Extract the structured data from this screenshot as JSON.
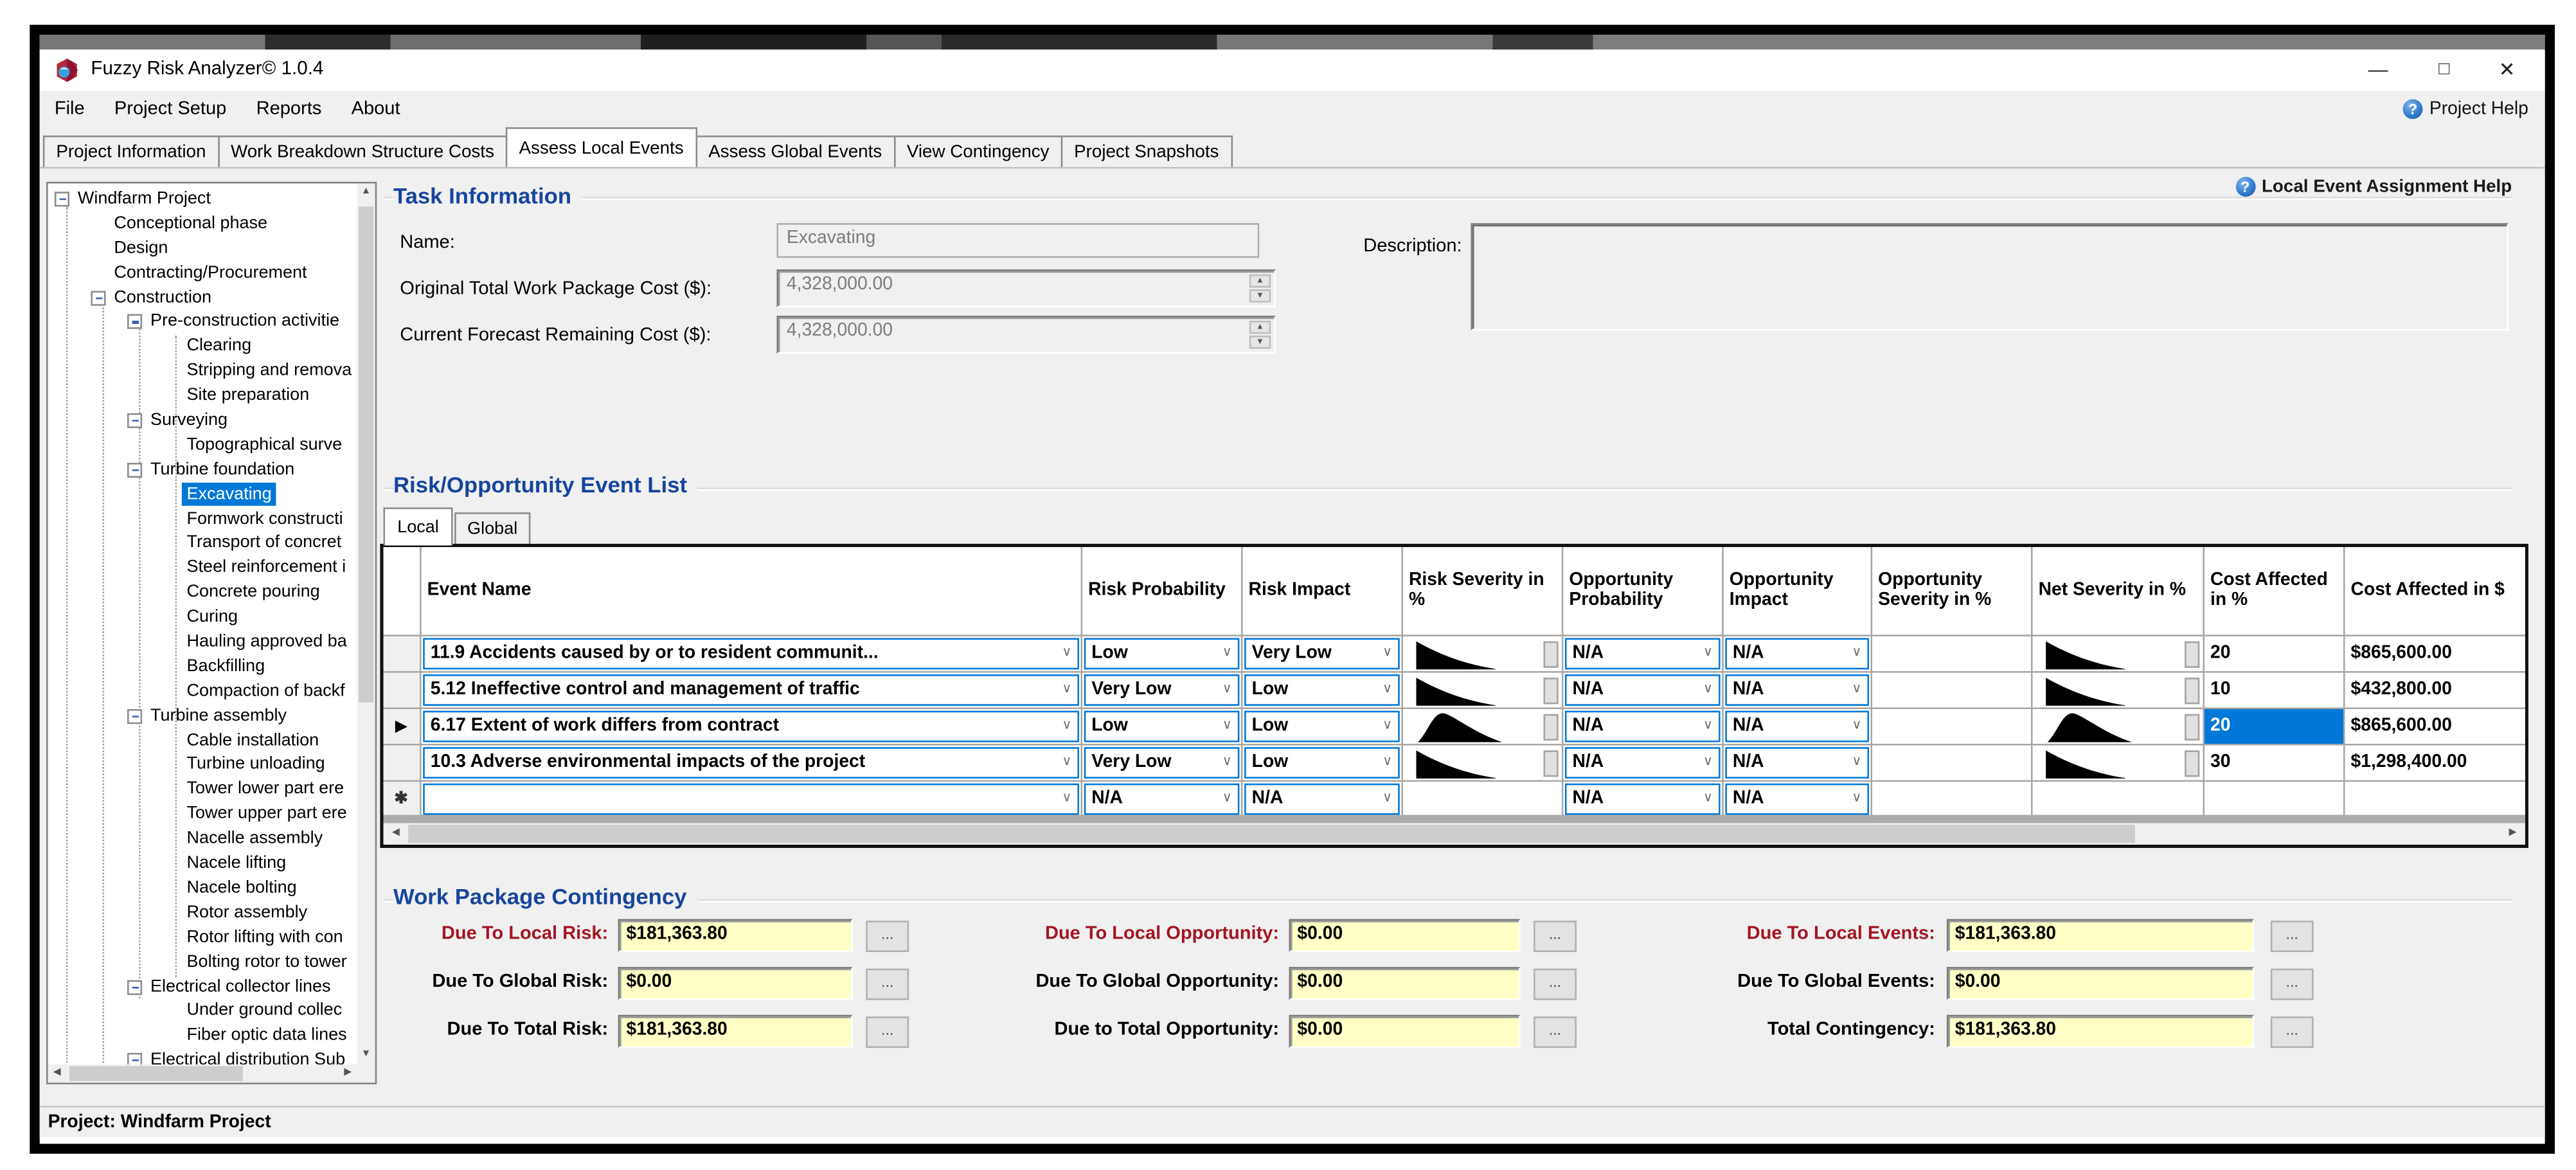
{
  "window": {
    "title": "Fuzzy Risk Analyzer© 1.0.4",
    "controls": {
      "minimize": "—",
      "maximize": "☐",
      "close": "✕"
    }
  },
  "menu": {
    "items": [
      "File",
      "Project Setup",
      "Reports",
      "About"
    ],
    "help_label": "Project Help"
  },
  "main_tabs": {
    "selected_index": 2,
    "items": [
      "Project Information",
      "Work Breakdown Structure Costs",
      "Assess Local Events",
      "Assess Global Events",
      "View Contingency",
      "Project Snapshots"
    ]
  },
  "tree": {
    "items": [
      {
        "label": "Windfarm Project",
        "level": 0,
        "expander": true
      },
      {
        "label": "Conceptional phase",
        "level": 1
      },
      {
        "label": "Design",
        "level": 1
      },
      {
        "label": "Contracting/Procurement",
        "level": 1
      },
      {
        "label": "Construction",
        "level": 1,
        "expander": true
      },
      {
        "label": "Pre-construction activitie",
        "level": 2,
        "expander": true
      },
      {
        "label": "Clearing",
        "level": 3
      },
      {
        "label": "Stripping and remova",
        "level": 3
      },
      {
        "label": "Site preparation",
        "level": 3
      },
      {
        "label": "Surveying",
        "level": 2,
        "expander": true
      },
      {
        "label": "Topographical surve",
        "level": 3
      },
      {
        "label": "Turbine foundation",
        "level": 2,
        "expander": true
      },
      {
        "label": "Excavating",
        "level": 3,
        "selected": true
      },
      {
        "label": "Formwork constructi",
        "level": 3
      },
      {
        "label": "Transport of concret",
        "level": 3
      },
      {
        "label": "Steel reinforcement i",
        "level": 3
      },
      {
        "label": "Concrete pouring",
        "level": 3
      },
      {
        "label": "Curing",
        "level": 3
      },
      {
        "label": "Hauling approved ba",
        "level": 3
      },
      {
        "label": "Backfilling",
        "level": 3
      },
      {
        "label": "Compaction of backf",
        "level": 3
      },
      {
        "label": "Turbine assembly",
        "level": 2,
        "expander": true
      },
      {
        "label": "Cable installation",
        "level": 3
      },
      {
        "label": "Turbine unloading",
        "level": 3
      },
      {
        "label": "Tower lower part ere",
        "level": 3
      },
      {
        "label": "Tower upper part ere",
        "level": 3
      },
      {
        "label": "Nacelle assembly",
        "level": 3
      },
      {
        "label": "Nacele lifting",
        "level": 3
      },
      {
        "label": "Nacele bolting",
        "level": 3
      },
      {
        "label": "Rotor assembly",
        "level": 3
      },
      {
        "label": "Rotor lifting with con",
        "level": 3
      },
      {
        "label": "Bolting rotor to tower",
        "level": 3
      },
      {
        "label": "Electrical collector lines",
        "level": 2,
        "expander": true
      },
      {
        "label": "Under ground collec",
        "level": 3
      },
      {
        "label": "Fiber optic data lines",
        "level": 3
      },
      {
        "label": "Electrical distribution Sub",
        "level": 2,
        "expander": true
      }
    ]
  },
  "task_info": {
    "heading": "Task Information",
    "help_link": "Local Event Assignment Help",
    "name_label": "Name:",
    "name_value": "Excavating",
    "original_cost_label": "Original Total Work Package Cost ($):",
    "original_cost_value": "4,328,000.00",
    "forecast_cost_label": "Current Forecast Remaining Cost ($):",
    "forecast_cost_value": "4,328,000.00",
    "description_label": "Description:",
    "description_value": ""
  },
  "event_list": {
    "heading": "Risk/Opportunity Event List",
    "tabs": [
      "Local",
      "Global"
    ],
    "selected_tab_index": 0,
    "columns": [
      "",
      "Event Name",
      "Risk Probability",
      "Risk Impact",
      "Risk Severity in %",
      "Opportunity Probability",
      "Opportunity Impact",
      "Opportunity Severity in %",
      "Net Severity in %",
      "Cost Affected in %",
      "Cost Affected in $"
    ],
    "rows": [
      {
        "marker": "",
        "name": "11.9 Accidents caused by or to resident communit...",
        "risk_probability": "Low",
        "risk_impact": "Very Low",
        "risk_curve": "decay",
        "opportunity_probability": "N/A",
        "opportunity_impact": "N/A",
        "opportunity_severity": "",
        "net_curve": "decay",
        "cost_affected_pct": "20",
        "cost_pct_selected": false,
        "cost_affected_usd": "$865,600.00"
      },
      {
        "marker": "",
        "name": "5.12 Ineffective control and  management of traffic",
        "risk_probability": "Very Low",
        "risk_impact": "Low",
        "risk_curve": "decay",
        "opportunity_probability": "N/A",
        "opportunity_impact": "N/A",
        "opportunity_severity": "",
        "net_curve": "decay",
        "cost_affected_pct": "10",
        "cost_pct_selected": false,
        "cost_affected_usd": "$432,800.00"
      },
      {
        "marker": "arrow",
        "name": "6.17 Extent of work differs from contract",
        "risk_probability": "Low",
        "risk_impact": "Low",
        "risk_curve": "peak",
        "opportunity_probability": "N/A",
        "opportunity_impact": "N/A",
        "opportunity_severity": "",
        "net_curve": "peak",
        "cost_affected_pct": "20",
        "cost_pct_selected": true,
        "cost_affected_usd": "$865,600.00"
      },
      {
        "marker": "",
        "name": "10.3 Adverse environmental impacts of the project",
        "risk_probability": "Very Low",
        "risk_impact": "Low",
        "risk_curve": "decay",
        "opportunity_probability": "N/A",
        "opportunity_impact": "N/A",
        "opportunity_severity": "",
        "net_curve": "decay",
        "cost_affected_pct": "30",
        "cost_pct_selected": false,
        "cost_affected_usd": "$1,298,400.00"
      },
      {
        "marker": "asterisk",
        "name": "",
        "risk_probability": "N/A",
        "risk_impact": "N/A",
        "risk_curve": "",
        "opportunity_probability": "N/A",
        "opportunity_impact": "N/A",
        "opportunity_severity": "",
        "net_curve": "",
        "cost_affected_pct": "",
        "cost_pct_selected": false,
        "cost_affected_usd": ""
      }
    ]
  },
  "contingency": {
    "heading": "Work Package Contingency",
    "cells": [
      {
        "label": "Due To Local Risk:",
        "value": "$181,363.80",
        "red": true,
        "col": 0,
        "row": 0
      },
      {
        "label": "Due To Local Opportunity:",
        "value": "$0.00",
        "red": true,
        "col": 1,
        "row": 0
      },
      {
        "label": "Due To Local Events:",
        "value": "$181,363.80",
        "red": true,
        "col": 2,
        "row": 0
      },
      {
        "label": "Due To Global Risk:",
        "value": "$0.00",
        "red": false,
        "col": 0,
        "row": 1
      },
      {
        "label": "Due To Global Opportunity:",
        "value": "$0.00",
        "red": false,
        "col": 1,
        "row": 1
      },
      {
        "label": "Due To Global Events:",
        "value": "$0.00",
        "red": false,
        "col": 2,
        "row": 1
      },
      {
        "label": "Due To Total Risk:",
        "value": "$181,363.80",
        "red": false,
        "col": 0,
        "row": 2
      },
      {
        "label": "Due to Total Opportunity:",
        "value": "$0.00",
        "red": false,
        "col": 1,
        "row": 2
      },
      {
        "label": "Total Contingency:",
        "value": "$181,363.80",
        "red": false,
        "col": 2,
        "row": 2
      }
    ],
    "browse_label": "..."
  },
  "statusbar": {
    "text": "Project: Windfarm Project"
  },
  "colors": {
    "accent_blue": "#0078d7",
    "heading_blue": "#17459e",
    "alert_red": "#a31524",
    "field_yellow": "#ffffc6"
  }
}
